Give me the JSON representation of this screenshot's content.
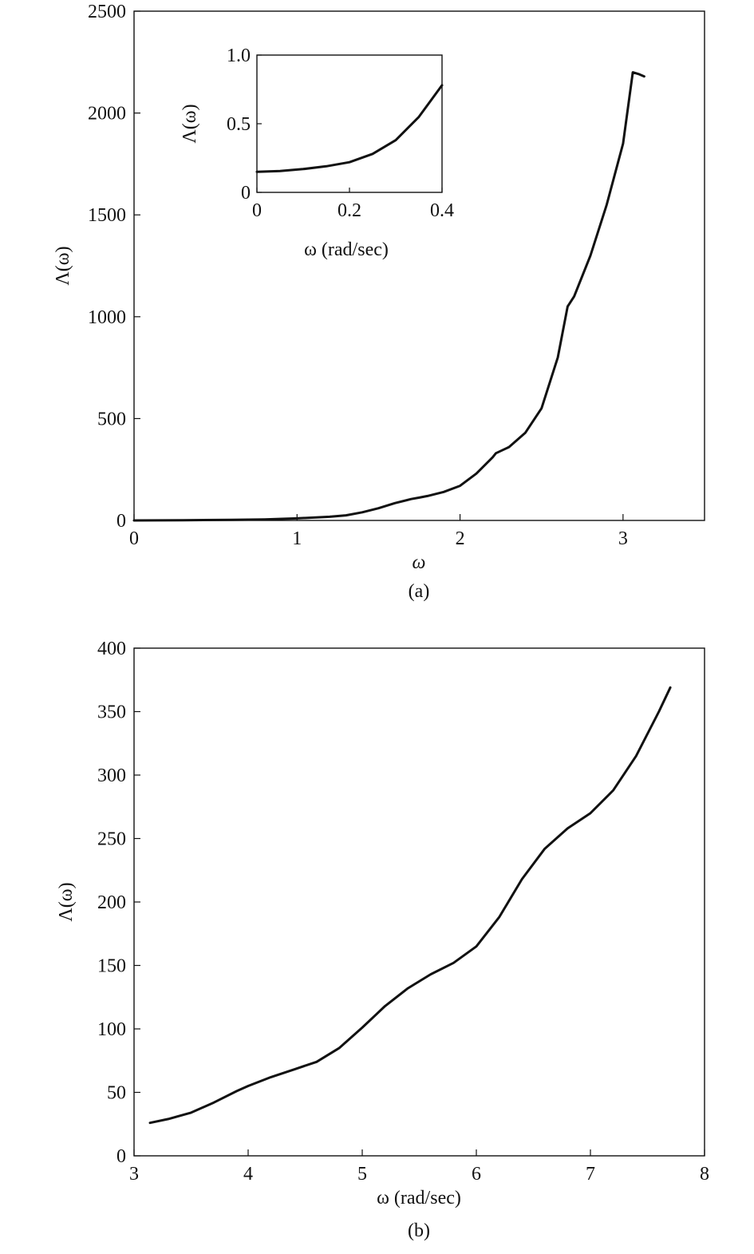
{
  "chart_data": [
    {
      "id": "a",
      "type": "line",
      "panel_label": "(a)",
      "xlabel": "ω",
      "ylabel": "Λ(ω)",
      "xlim": [
        0,
        3.5
      ],
      "ylim": [
        0,
        2500
      ],
      "xticks": [
        0,
        1,
        2,
        3
      ],
      "xtick_labels": [
        "0",
        "1",
        "2",
        "3"
      ],
      "yticks": [
        0,
        500,
        1000,
        1500,
        2000,
        2500
      ],
      "ytick_labels": [
        "0",
        "500",
        "1000",
        "1500",
        "2000",
        "2500"
      ],
      "grid": false,
      "series": [
        {
          "x": [
            0,
            0.3,
            0.6,
            0.8,
            1.0,
            1.2,
            1.3,
            1.4,
            1.5,
            1.6,
            1.7,
            1.75,
            1.8,
            1.9,
            2.0,
            2.1,
            2.2,
            2.22,
            2.3,
            2.4,
            2.5,
            2.6,
            2.66,
            2.7,
            2.8,
            2.9,
            3.0,
            3.06,
            3.1,
            3.13
          ],
          "y": [
            0,
            1,
            3,
            5,
            10,
            18,
            25,
            40,
            60,
            85,
            105,
            112,
            120,
            140,
            170,
            230,
            310,
            330,
            360,
            430,
            550,
            800,
            1050,
            1100,
            1300,
            1550,
            1850,
            2200,
            2190,
            2180
          ]
        }
      ]
    },
    {
      "id": "a-inset",
      "type": "line",
      "xlabel": "ω (rad/sec)",
      "ylabel": "Λ(ω)",
      "xlim": [
        0,
        0.4
      ],
      "ylim": [
        0,
        1.0
      ],
      "xticks": [
        0,
        0.2,
        0.4
      ],
      "xtick_labels": [
        "0",
        "0.2",
        "0.4"
      ],
      "yticks": [
        0,
        0.5,
        1.0
      ],
      "ytick_labels": [
        "0",
        "0.5",
        "1.0"
      ],
      "grid": false,
      "series": [
        {
          "x": [
            0,
            0.05,
            0.1,
            0.15,
            0.2,
            0.25,
            0.3,
            0.35,
            0.4
          ],
          "y": [
            0.15,
            0.155,
            0.17,
            0.19,
            0.22,
            0.28,
            0.38,
            0.55,
            0.78
          ]
        }
      ]
    },
    {
      "id": "b",
      "type": "line",
      "panel_label": "(b)",
      "xlabel": "ω (rad/sec)",
      "ylabel": "Λ(ω)",
      "xlim": [
        3,
        8
      ],
      "ylim": [
        0,
        400
      ],
      "xticks": [
        3,
        4,
        5,
        6,
        7,
        8
      ],
      "xtick_labels": [
        "3",
        "4",
        "5",
        "6",
        "7",
        "8"
      ],
      "yticks": [
        0,
        50,
        100,
        150,
        200,
        250,
        300,
        350,
        400
      ],
      "ytick_labels": [
        "0",
        "50",
        "100",
        "150",
        "200",
        "250",
        "300",
        "350",
        "400"
      ],
      "grid": false,
      "series": [
        {
          "x": [
            3.14,
            3.3,
            3.5,
            3.7,
            3.9,
            4.0,
            4.2,
            4.4,
            4.6,
            4.8,
            5.0,
            5.2,
            5.4,
            5.6,
            5.8,
            6.0,
            6.2,
            6.4,
            6.6,
            6.8,
            7.0,
            7.2,
            7.4,
            7.6,
            7.7
          ],
          "y": [
            26,
            29,
            34,
            42,
            51,
            55,
            62,
            68,
            74,
            85,
            101,
            118,
            132,
            143,
            152,
            165,
            188,
            218,
            242,
            258,
            270,
            288,
            315,
            350,
            369
          ]
        }
      ]
    }
  ]
}
